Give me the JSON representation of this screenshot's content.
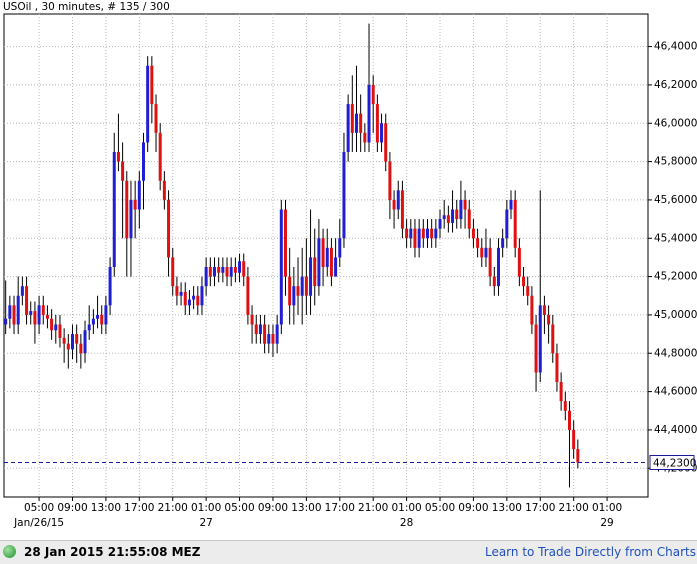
{
  "chart_data": {
    "type": "candlestick",
    "title": "USOil , 30 minutes, # 135 / 300",
    "up_color": "#1f1fd1",
    "down_color": "#dd1111",
    "grid": true,
    "xlim": [
      0.8,
      77.9
    ],
    "ylim": [
      44.05,
      46.57
    ],
    "yticks": [
      {
        "value": 44.2,
        "label": "44,2000"
      },
      {
        "value": 44.4,
        "label": "44,4000"
      },
      {
        "value": 44.6,
        "label": "44,6000"
      },
      {
        "value": 44.8,
        "label": "44,8000"
      },
      {
        "value": 45.0,
        "label": "45,0000"
      },
      {
        "value": 45.2,
        "label": "45,2000"
      },
      {
        "value": 45.4,
        "label": "45,4000"
      },
      {
        "value": 45.6,
        "label": "45,6000"
      },
      {
        "value": 45.8,
        "label": "45,8000"
      },
      {
        "value": 46.0,
        "label": "46,0000"
      },
      {
        "value": 46.2,
        "label": "46,2000"
      },
      {
        "value": 46.4,
        "label": "46,4000"
      }
    ],
    "xticks": [
      {
        "value": 5,
        "label": "05:00"
      },
      {
        "value": 9,
        "label": "09:00"
      },
      {
        "value": 13,
        "label": "13:00"
      },
      {
        "value": 17,
        "label": "17:00"
      },
      {
        "value": 21,
        "label": "21:00"
      },
      {
        "value": 25,
        "label": "01:00"
      },
      {
        "value": 29,
        "label": "05:00"
      },
      {
        "value": 33,
        "label": "09:00"
      },
      {
        "value": 37,
        "label": "13:00"
      },
      {
        "value": 41,
        "label": "17:00"
      },
      {
        "value": 45,
        "label": "21:00"
      },
      {
        "value": 49,
        "label": "01:00"
      },
      {
        "value": 53,
        "label": "05:00"
      },
      {
        "value": 57,
        "label": "09:00"
      },
      {
        "value": 61,
        "label": "13:00"
      },
      {
        "value": 65,
        "label": "17:00"
      },
      {
        "value": 69,
        "label": "21:00"
      },
      {
        "value": 73,
        "label": "01:00"
      }
    ],
    "date_labels": [
      {
        "value": 5,
        "label": "Jan/26/15"
      },
      {
        "value": 25,
        "label": "27"
      },
      {
        "value": 49,
        "label": "28"
      },
      {
        "value": 73,
        "label": "29"
      }
    ],
    "last_price": {
      "value": 44.23,
      "label": "44,2300"
    },
    "x": [
      1,
      1.5,
      2,
      2.5,
      3,
      3.5,
      4,
      4.5,
      5,
      5.5,
      6,
      6.5,
      7,
      7.5,
      8,
      8.5,
      9,
      9.5,
      10,
      10.5,
      11,
      11.5,
      12,
      12.5,
      13,
      13.5,
      14,
      14.5,
      15,
      15.5,
      16,
      16.5,
      17,
      17.5,
      18,
      18.5,
      19,
      19.5,
      20,
      20.5,
      21,
      21.5,
      22,
      22.5,
      23,
      23.5,
      24,
      24.5,
      25,
      25.5,
      26,
      26.5,
      27,
      27.5,
      28,
      28.5,
      29,
      29.5,
      30,
      30.5,
      31,
      31.5,
      32,
      32.5,
      33,
      33.5,
      34,
      34.5,
      35,
      35.5,
      36,
      36.5,
      37,
      37.5,
      38,
      38.5,
      39,
      39.5,
      40,
      40.5,
      41,
      41.5,
      42,
      42.5,
      43,
      43.5,
      44,
      44.5,
      45,
      45.5,
      46,
      46.5,
      47,
      47.5,
      48,
      48.5,
      49,
      49.5,
      50,
      50.5,
      51,
      51.5,
      52,
      52.5,
      53,
      53.5,
      54,
      54.5,
      55,
      55.5,
      56,
      56.5,
      57,
      57.5,
      58,
      58.5,
      59,
      59.5,
      60,
      60.5,
      61,
      61.5,
      62,
      62.5,
      63,
      63.5,
      64,
      64.5,
      65,
      65.5,
      66,
      66.5,
      67,
      67.5,
      68,
      68.5,
      69,
      69.5
    ],
    "open": [
      44.95,
      44.98,
      45.05,
      44.95,
      45.1,
      45.15,
      45.0,
      45.02,
      44.95,
      45.05,
      45.0,
      44.98,
      44.92,
      44.95,
      44.88,
      44.85,
      44.82,
      44.9,
      44.85,
      44.8,
      44.92,
      44.95,
      44.98,
      45.0,
      44.95,
      45.05,
      45.25,
      45.85,
      45.8,
      45.7,
      45.4,
      45.6,
      45.55,
      45.7,
      45.9,
      46.3,
      46.1,
      45.95,
      45.7,
      45.6,
      45.3,
      45.15,
      45.1,
      45.12,
      45.05,
      45.08,
      45.1,
      45.05,
      45.15,
      45.25,
      45.2,
      45.25,
      45.22,
      45.25,
      45.2,
      45.25,
      45.22,
      45.28,
      45.2,
      45.0,
      44.95,
      44.9,
      44.95,
      44.85,
      44.9,
      44.85,
      44.95,
      45.55,
      45.2,
      45.05,
      45.15,
      45.1,
      45.2,
      45.1,
      45.3,
      45.15,
      45.4,
      45.25,
      45.35,
      45.2,
      45.3,
      45.4,
      45.85,
      46.1,
      45.95,
      46.05,
      45.95,
      45.9,
      46.2,
      46.1,
      45.9,
      46.0,
      45.8,
      45.6,
      45.55,
      45.65,
      45.45,
      45.4,
      45.45,
      45.35,
      45.45,
      45.4,
      45.45,
      45.4,
      45.45,
      45.5,
      45.52,
      45.48,
      45.55,
      45.5,
      45.6,
      45.55,
      45.45,
      45.4,
      45.35,
      45.3,
      45.35,
      45.2,
      45.15,
      45.35,
      45.4,
      45.55,
      45.6,
      45.35,
      45.2,
      45.15,
      45.1,
      44.95,
      44.7,
      45.05,
      45.0,
      44.95,
      44.8,
      44.65,
      44.55,
      44.5,
      44.4,
      44.3
    ],
    "high": [
      45.18,
      45.1,
      45.1,
      45.2,
      45.2,
      45.2,
      45.07,
      45.07,
      45.1,
      45.1,
      45.05,
      45.03,
      45.0,
      45.0,
      44.93,
      44.9,
      44.95,
      44.95,
      44.9,
      44.97,
      45.05,
      45.03,
      45.1,
      45.05,
      45.1,
      45.3,
      45.95,
      46.05,
      45.9,
      45.75,
      45.7,
      45.7,
      45.75,
      45.95,
      46.35,
      46.35,
      46.15,
      46.0,
      45.75,
      45.65,
      45.35,
      45.2,
      45.17,
      45.17,
      45.13,
      45.15,
      45.15,
      45.2,
      45.3,
      45.3,
      45.3,
      45.3,
      45.3,
      45.3,
      45.3,
      45.3,
      45.32,
      45.32,
      45.25,
      45.05,
      45.0,
      45.0,
      45.0,
      44.95,
      44.95,
      45.0,
      45.6,
      45.6,
      45.35,
      45.25,
      45.3,
      45.35,
      45.4,
      45.55,
      45.45,
      45.5,
      45.45,
      45.45,
      45.4,
      45.4,
      45.5,
      45.95,
      46.15,
      46.25,
      46.3,
      46.15,
      46.0,
      46.52,
      46.25,
      46.15,
      46.05,
      46.05,
      45.85,
      45.65,
      45.7,
      45.7,
      45.5,
      45.5,
      45.5,
      45.5,
      45.5,
      45.5,
      45.5,
      45.5,
      45.55,
      45.6,
      45.57,
      45.65,
      45.6,
      45.7,
      45.65,
      45.6,
      45.5,
      45.45,
      45.4,
      45.45,
      45.4,
      45.25,
      45.4,
      45.45,
      45.6,
      45.65,
      45.65,
      45.4,
      45.25,
      45.2,
      45.15,
      45.0,
      45.65,
      45.1,
      45.05,
      45.0,
      44.85,
      44.7,
      44.6,
      44.55,
      44.45,
      44.35
    ],
    "low": [
      44.9,
      44.93,
      44.9,
      44.9,
      45.05,
      44.95,
      44.95,
      44.85,
      44.9,
      44.95,
      44.93,
      44.87,
      44.85,
      44.83,
      44.75,
      44.72,
      44.77,
      44.75,
      44.72,
      44.75,
      44.87,
      44.9,
      44.93,
      44.9,
      44.9,
      45.0,
      45.2,
      45.75,
      45.4,
      45.2,
      45.2,
      45.4,
      45.45,
      45.55,
      45.85,
      46.0,
      45.85,
      45.65,
      45.55,
      45.2,
      45.1,
      45.05,
      45.05,
      45.0,
      45.0,
      45.03,
      45.0,
      45.0,
      45.1,
      45.15,
      45.15,
      45.17,
      45.17,
      45.15,
      45.15,
      45.17,
      45.17,
      45.15,
      44.95,
      44.85,
      44.85,
      44.85,
      44.8,
      44.8,
      44.78,
      44.8,
      44.9,
      45.1,
      44.95,
      44.95,
      45.0,
      44.95,
      45.0,
      45.0,
      45.05,
      45.1,
      45.15,
      45.2,
      45.15,
      45.2,
      45.25,
      45.35,
      45.8,
      45.85,
      45.85,
      45.85,
      45.85,
      45.85,
      45.95,
      45.85,
      45.85,
      45.75,
      45.5,
      45.45,
      45.5,
      45.4,
      45.35,
      45.35,
      45.3,
      45.3,
      45.35,
      45.35,
      45.35,
      45.35,
      45.4,
      45.45,
      45.43,
      45.43,
      45.45,
      45.45,
      45.45,
      45.4,
      45.35,
      45.3,
      45.25,
      45.25,
      45.15,
      45.1,
      45.1,
      45.3,
      45.35,
      45.5,
      45.3,
      45.15,
      45.1,
      45.05,
      44.9,
      44.6,
      44.65,
      44.9,
      44.85,
      44.75,
      44.6,
      44.5,
      44.45,
      44.1,
      44.25,
      44.2
    ],
    "close": [
      44.98,
      45.05,
      44.95,
      45.1,
      45.15,
      45.0,
      45.02,
      44.95,
      45.05,
      45.0,
      44.98,
      44.92,
      44.95,
      44.88,
      44.85,
      44.82,
      44.9,
      44.85,
      44.8,
      44.92,
      44.95,
      44.98,
      45.0,
      44.95,
      45.05,
      45.25,
      45.85,
      45.8,
      45.7,
      45.4,
      45.6,
      45.55,
      45.7,
      45.9,
      46.3,
      46.1,
      45.95,
      45.7,
      45.6,
      45.3,
      45.15,
      45.1,
      45.12,
      45.05,
      45.08,
      45.1,
      45.05,
      45.15,
      45.25,
      45.2,
      45.25,
      45.22,
      45.25,
      45.2,
      45.25,
      45.22,
      45.28,
      45.2,
      45.0,
      44.95,
      44.9,
      44.95,
      44.85,
      44.9,
      44.85,
      44.95,
      45.55,
      45.2,
      45.05,
      45.15,
      45.1,
      45.2,
      45.1,
      45.3,
      45.15,
      45.4,
      45.25,
      45.35,
      45.2,
      45.3,
      45.4,
      45.85,
      46.1,
      45.95,
      46.05,
      45.95,
      45.9,
      46.2,
      46.1,
      45.9,
      46.0,
      45.8,
      45.6,
      45.55,
      45.65,
      45.45,
      45.4,
      45.45,
      45.35,
      45.45,
      45.4,
      45.45,
      45.4,
      45.45,
      45.5,
      45.52,
      45.48,
      45.55,
      45.5,
      45.6,
      45.55,
      45.45,
      45.4,
      45.35,
      45.3,
      45.35,
      45.2,
      45.15,
      45.35,
      45.4,
      45.55,
      45.6,
      45.35,
      45.2,
      45.15,
      45.1,
      44.95,
      44.7,
      45.05,
      45.0,
      44.95,
      44.8,
      44.65,
      44.55,
      44.5,
      44.4,
      44.3,
      44.23
    ]
  },
  "footer": {
    "timestamp": "28 Jan 2015 21:55:08 MEZ",
    "link": "Learn to Trade Directly from Charts"
  }
}
